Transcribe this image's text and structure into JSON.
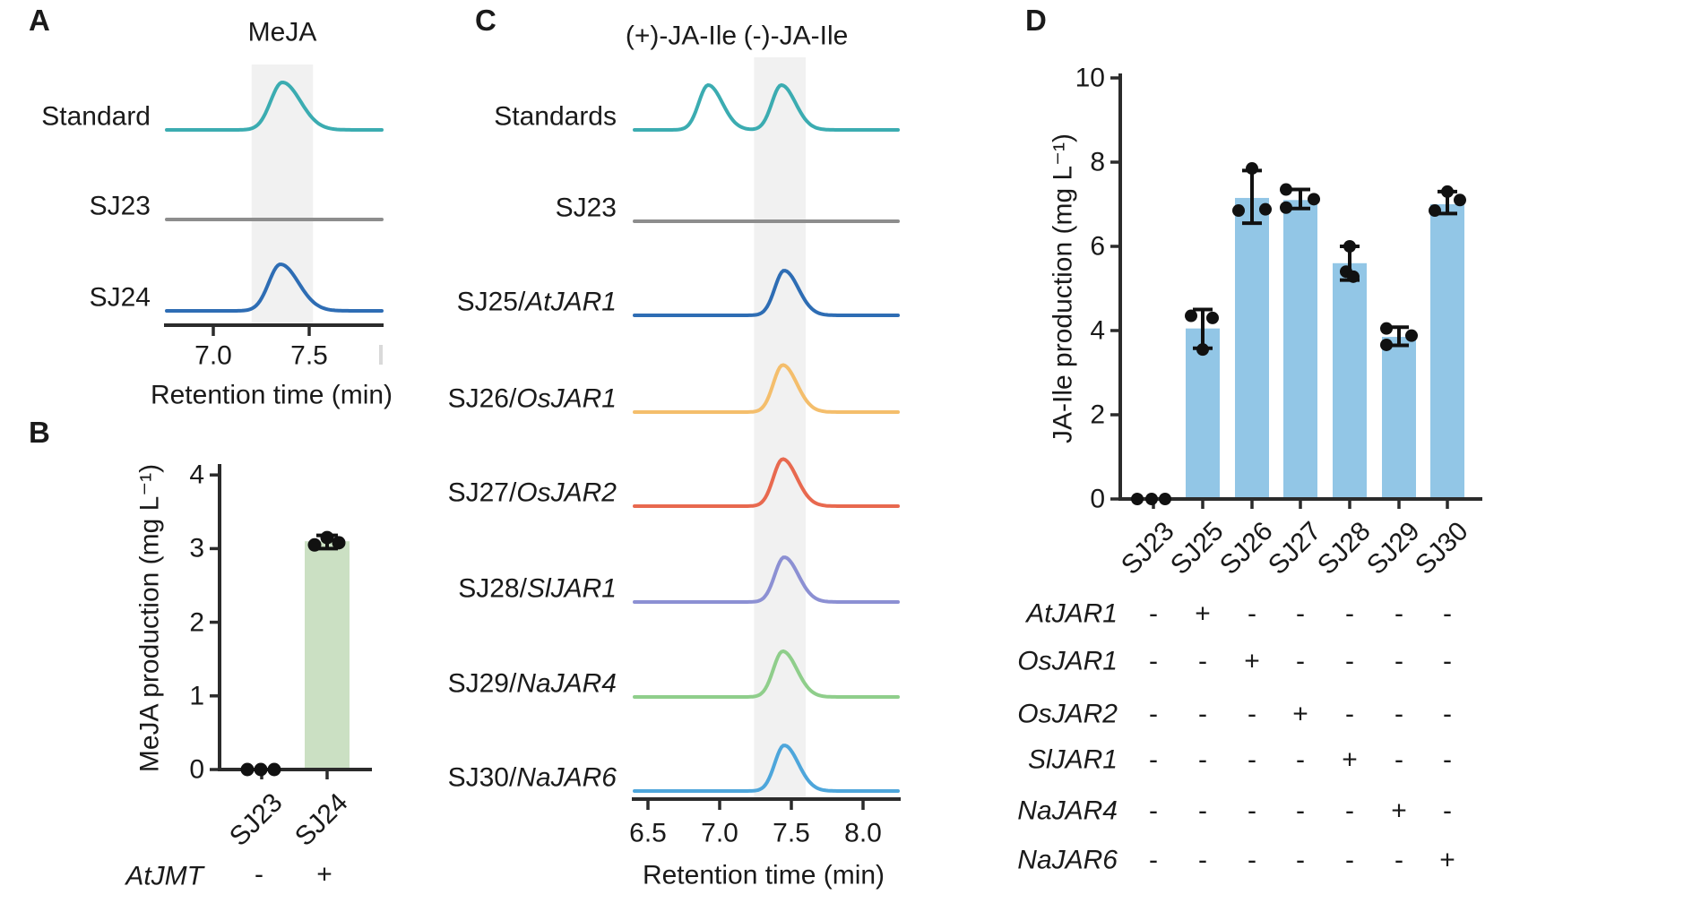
{
  "panel_letters": {
    "a": "A",
    "b": "B",
    "c": "C",
    "d": "D"
  },
  "colors": {
    "band": "#F1F1F1",
    "axis": "#2B2B2B",
    "dot": "#111111",
    "teal": "#3BACB1",
    "gray": "#8D8D8D",
    "blue": "#2E6DB4",
    "orange": "#F4BE6C",
    "red": "#E8694F",
    "purple": "#8C90D3",
    "green": "#8FCE8B",
    "sky": "#4EA6DB",
    "bar_green": "#CBE0C3",
    "bar_blue": "#92C6E6"
  },
  "chart_data": [
    {
      "id": "A",
      "type": "line",
      "title": "MeJA",
      "xlabel": "Retention time (min)",
      "x_ticks": [
        7.0,
        7.5
      ],
      "x_tick_labels": [
        "7.0",
        "7.5"
      ],
      "x_range": [
        6.75,
        7.88
      ],
      "highlight_band_min": [
        7.2,
        7.52
      ],
      "traces": [
        {
          "label": "Standard",
          "label_italic": "",
          "color": "#3BACB1",
          "peaks": [
            {
              "x": 7.36,
              "h": 1.02
            }
          ]
        },
        {
          "label": "SJ23",
          "label_italic": "",
          "color": "#8D8D8D",
          "peaks": []
        },
        {
          "label": "SJ24",
          "label_italic": "",
          "color": "#2E6DB4",
          "peaks": [
            {
              "x": 7.35,
              "h": 1.0
            }
          ]
        }
      ]
    },
    {
      "id": "B",
      "type": "bar",
      "ylabel": "MeJA production (mg L⁻¹)",
      "categories": [
        "SJ23",
        "SJ24"
      ],
      "values": [
        0,
        3.1
      ],
      "errors": [
        null,
        [
          3.0,
          3.18
        ]
      ],
      "points": [
        [
          [
            -16,
            0
          ],
          [
            -1,
            0
          ],
          [
            14,
            0
          ]
        ],
        [
          [
            -14,
            3.05
          ],
          [
            0,
            3.15
          ],
          [
            13,
            3.08
          ]
        ]
      ],
      "ylim": [
        0,
        4
      ],
      "yticks": [
        0,
        1,
        2,
        3,
        4
      ],
      "bar_color": "#CBE0C3",
      "condition_row": {
        "label": "AtJMT",
        "values": [
          "-",
          "+"
        ]
      }
    },
    {
      "id": "C",
      "type": "line",
      "titles": [
        "(+)-JA-Ile",
        "(-)-JA-Ile"
      ],
      "xlabel": "Retention time (min)",
      "x_ticks": [
        6.5,
        7.0,
        7.5,
        8.0
      ],
      "x_tick_labels": [
        "6.5",
        "7.0",
        "7.5",
        "8.0"
      ],
      "x_range": [
        6.41,
        8.25
      ],
      "highlight_band_min": [
        7.24,
        7.6
      ],
      "traces": [
        {
          "label": "Standards",
          "label_italic": "",
          "color": "#3BACB1",
          "peaks": [
            {
              "x": 6.92,
              "h": 1.0
            },
            {
              "x": 7.43,
              "h": 1.0
            }
          ]
        },
        {
          "label": "SJ23",
          "label_italic": "",
          "color": "#8D8D8D",
          "peaks": []
        },
        {
          "label": "SJ25/",
          "label_italic": "AtJAR1",
          "color": "#2E6DB4",
          "peaks": [
            {
              "x": 7.45,
              "h": 1.0
            }
          ]
        },
        {
          "label": "SJ26/",
          "label_italic": "OsJAR1",
          "color": "#F4BE6C",
          "peaks": [
            {
              "x": 7.44,
              "h": 1.05
            }
          ]
        },
        {
          "label": "SJ27/",
          "label_italic": "OsJAR2",
          "color": "#E8694F",
          "peaks": [
            {
              "x": 7.44,
              "h": 1.05
            }
          ]
        },
        {
          "label": "SJ28/",
          "label_italic": "SlJAR1",
          "color": "#8C90D3",
          "peaks": [
            {
              "x": 7.45,
              "h": 1.0
            }
          ]
        },
        {
          "label": "SJ29/",
          "label_italic": "NaJAR4",
          "color": "#8FCE8B",
          "peaks": [
            {
              "x": 7.44,
              "h": 1.02
            }
          ]
        },
        {
          "label": "SJ30/",
          "label_italic": "NaJAR6",
          "color": "#4EA6DB",
          "peaks": [
            {
              "x": 7.45,
              "h": 1.02
            }
          ]
        }
      ]
    },
    {
      "id": "D",
      "type": "bar",
      "ylabel": "JA-Ile production (mg L⁻¹)",
      "categories": [
        "SJ23",
        "SJ25",
        "SJ26",
        "SJ27",
        "SJ28",
        "SJ29",
        "SJ30"
      ],
      "values": [
        0,
        4.05,
        7.15,
        7.1,
        5.6,
        3.85,
        7.0
      ],
      "errors": [
        null,
        [
          3.58,
          4.5
        ],
        [
          6.55,
          7.8
        ],
        [
          6.9,
          7.35
        ],
        [
          5.2,
          6.0
        ],
        [
          3.65,
          4.08
        ],
        [
          6.78,
          7.3
        ]
      ],
      "points": [
        [
          [
            -18,
            0
          ],
          [
            -2,
            0
          ],
          [
            13,
            0
          ]
        ],
        [
          [
            -13,
            4.35
          ],
          [
            11,
            4.3
          ],
          [
            0,
            3.55
          ]
        ],
        [
          [
            0,
            7.85
          ],
          [
            -15,
            6.85
          ],
          [
            15,
            6.88
          ]
        ],
        [
          [
            -16,
            7.35
          ],
          [
            15,
            7.12
          ],
          [
            -16,
            6.92
          ]
        ],
        [
          [
            0,
            6.0
          ],
          [
            -4,
            5.4
          ],
          [
            4,
            5.28
          ]
        ],
        [
          [
            -14,
            4.05
          ],
          [
            14,
            3.88
          ],
          [
            -14,
            3.66
          ]
        ],
        [
          [
            0,
            7.3
          ],
          [
            14,
            7.1
          ],
          [
            -14,
            6.85
          ]
        ]
      ],
      "ylim": [
        0,
        10
      ],
      "yticks": [
        0,
        2,
        4,
        6,
        8,
        10
      ],
      "bar_color": "#92C6E6",
      "matrix": {
        "rows": [
          {
            "gene": "AtJAR1",
            "values": [
              "-",
              "+",
              "-",
              "-",
              "-",
              "-",
              "-"
            ]
          },
          {
            "gene": "OsJAR1",
            "values": [
              "-",
              "-",
              "+",
              "-",
              "-",
              "-",
              "-"
            ]
          },
          {
            "gene": "OsJAR2",
            "values": [
              "-",
              "-",
              "-",
              "+",
              "-",
              "-",
              "-"
            ]
          },
          {
            "gene": "SlJAR1",
            "values": [
              "-",
              "-",
              "-",
              "-",
              "+",
              "-",
              "-"
            ]
          },
          {
            "gene": "NaJAR4",
            "values": [
              "-",
              "-",
              "-",
              "-",
              "-",
              "+",
              "-"
            ]
          },
          {
            "gene": "NaJAR6",
            "values": [
              "-",
              "-",
              "-",
              "-",
              "-",
              "-",
              "+"
            ]
          }
        ]
      }
    }
  ]
}
